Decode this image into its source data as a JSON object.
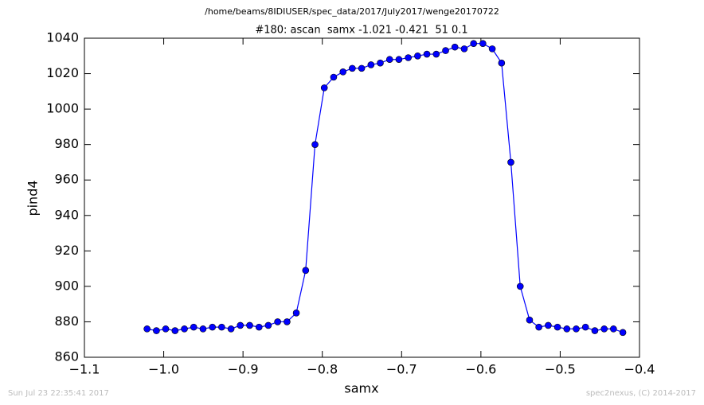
{
  "chart_data": {
    "type": "line",
    "suptitle": "/home/beams/8IDIUSER/spec_data/2017/July2017/wenge20170722",
    "title": "#180: ascan  samx -1.021 -0.421  51 0.1",
    "xlabel": "samx",
    "ylabel": "pind4",
    "footer_left": "Sun Jul 23 22:35:41 2017",
    "footer_right": "spec2nexus, (C) 2014-2017",
    "x": [
      -1.021,
      -1.0092,
      -0.9975,
      -0.9857,
      -0.9739,
      -0.9622,
      -0.9504,
      -0.9386,
      -0.9269,
      -0.9151,
      -0.9034,
      -0.8916,
      -0.8798,
      -0.8681,
      -0.8563,
      -0.8445,
      -0.8328,
      -0.821,
      -0.8092,
      -0.7975,
      -0.7857,
      -0.7739,
      -0.7622,
      -0.7504,
      -0.7386,
      -0.7269,
      -0.7151,
      -0.7034,
      -0.6916,
      -0.6798,
      -0.6681,
      -0.6563,
      -0.6445,
      -0.6328,
      -0.621,
      -0.6092,
      -0.5975,
      -0.5857,
      -0.5739,
      -0.5622,
      -0.5504,
      -0.5386,
      -0.5269,
      -0.5151,
      -0.5034,
      -0.4916,
      -0.4798,
      -0.4681,
      -0.4563,
      -0.4445,
      -0.4328,
      -0.421
    ],
    "series": [
      {
        "name": "pind4",
        "color": "#0000ff",
        "values": [
          876,
          875,
          876,
          875,
          876,
          877,
          876,
          877,
          877,
          876,
          878,
          878,
          877,
          878,
          880,
          880,
          885,
          909,
          980,
          1012,
          1018,
          1021,
          1023,
          1023,
          1025,
          1026,
          1028,
          1028,
          1029,
          1030,
          1031,
          1031,
          1033,
          1035,
          1034,
          1037,
          1037,
          1034,
          1026,
          970,
          900,
          881,
          877,
          878,
          877,
          876,
          876,
          877,
          875,
          876,
          876,
          874
        ]
      }
    ],
    "xlim": [
      -1.1,
      -0.4
    ],
    "xticks": [
      {
        "value": -1.1,
        "label": "−1.1"
      },
      {
        "value": -1.0,
        "label": "−1.0"
      },
      {
        "value": -0.9,
        "label": "−0.9"
      },
      {
        "value": -0.8,
        "label": "−0.8"
      },
      {
        "value": -0.7,
        "label": "−0.7"
      },
      {
        "value": -0.6,
        "label": "−0.6"
      },
      {
        "value": -0.5,
        "label": "−0.5"
      },
      {
        "value": -0.4,
        "label": "−0.4"
      }
    ],
    "ylim": [
      860,
      1040
    ],
    "yticks": [
      860,
      880,
      900,
      920,
      940,
      960,
      980,
      1000,
      1020,
      1040
    ],
    "grid": false
  }
}
